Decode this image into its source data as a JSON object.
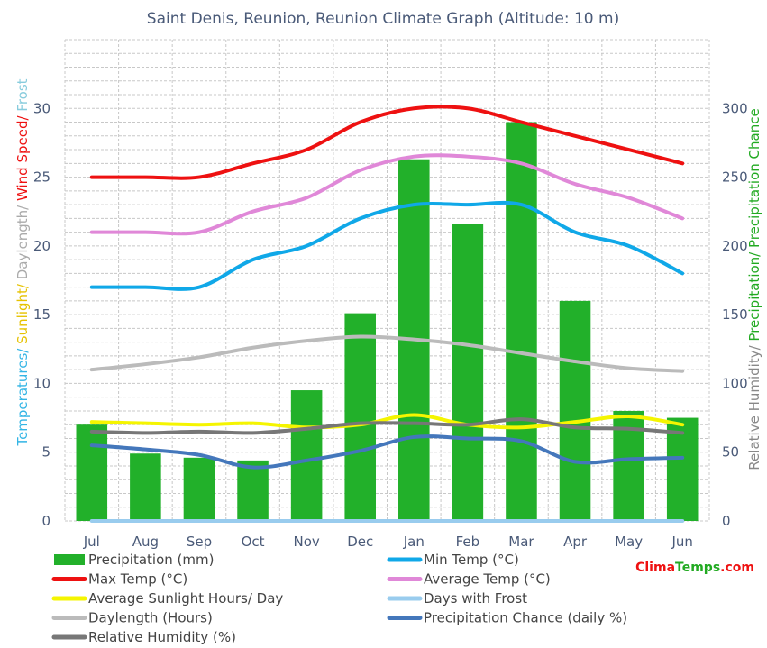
{
  "chart_data": {
    "type": "bar+line",
    "title": "Saint Denis, Reunion, Reunion Climate Graph (Altitude: 10 m)",
    "categories": [
      "Jul",
      "Aug",
      "Sep",
      "Oct",
      "Nov",
      "Dec",
      "Jan",
      "Feb",
      "Mar",
      "Apr",
      "May",
      "Jun"
    ],
    "left_axis": {
      "ylim": [
        0,
        35
      ],
      "ticks": [
        0,
        5,
        10,
        15,
        20,
        25,
        30
      ],
      "label_parts": [
        {
          "text": "Temperatures/",
          "color": "#33b5e5"
        },
        {
          "text": " Sunlight/",
          "color": "#e6c200"
        },
        {
          "text": " Daylength/",
          "color": "#aaaaaa"
        },
        {
          "text": " Wind Speed/",
          "color": "#ee1111"
        },
        {
          "text": " Frost",
          "color": "#88ccdd"
        }
      ]
    },
    "right_axis": {
      "ylim": [
        0,
        350
      ],
      "ticks": [
        0,
        50,
        100,
        150,
        200,
        250,
        300
      ],
      "label_parts": [
        {
          "text": "Relative Humidity/",
          "color": "#888888"
        },
        {
          "text": " Precipitation/",
          "color": "#22aa22"
        },
        {
          "text": " Precipitation Chance",
          "color": "#22aa22"
        }
      ]
    },
    "bars": {
      "name": "Precipitation (mm)",
      "color": "#22b02a",
      "axis": "right",
      "values": [
        70,
        49,
        46,
        44,
        95,
        151,
        263,
        216,
        290,
        160,
        80,
        75
      ]
    },
    "series": [
      {
        "name": "Max Temp (°C)",
        "color": "#ee1111",
        "axis": "left",
        "values": [
          25,
          25,
          25,
          26,
          27,
          29,
          30,
          30,
          29,
          28,
          27,
          26
        ]
      },
      {
        "name": "Average Temp (°C)",
        "color": "#e088d8",
        "axis": "left",
        "values": [
          21,
          21,
          21,
          22.5,
          23.5,
          25.5,
          26.5,
          26.5,
          26,
          24.5,
          23.5,
          22
        ]
      },
      {
        "name": "Min Temp (°C)",
        "color": "#10a8e8",
        "axis": "left",
        "values": [
          17,
          17,
          17,
          19,
          20,
          22,
          23,
          23,
          23,
          21,
          20,
          18
        ]
      },
      {
        "name": "Daylength (Hours)",
        "color": "#bbbbbb",
        "axis": "left",
        "values": [
          11,
          11.4,
          11.9,
          12.6,
          13.1,
          13.4,
          13.2,
          12.8,
          12.2,
          11.6,
          11.1,
          10.9
        ]
      },
      {
        "name": "Average Sunlight Hours/ Day",
        "color": "#f5f500",
        "axis": "left",
        "values": [
          7.2,
          7.1,
          7.0,
          7.1,
          6.8,
          7.0,
          7.7,
          7.0,
          6.8,
          7.2,
          7.6,
          7.0
        ]
      },
      {
        "name": "Relative Humidity (%)",
        "color": "#777777",
        "axis": "left",
        "values": [
          6.5,
          6.4,
          6.5,
          6.4,
          6.7,
          7.1,
          7.1,
          7.0,
          7.4,
          6.8,
          6.7,
          6.4
        ]
      },
      {
        "name": "Precipitation Chance (daily %)",
        "color": "#4477bb",
        "axis": "left",
        "values": [
          5.5,
          5.2,
          4.8,
          3.9,
          4.4,
          5.1,
          6.1,
          6.0,
          5.8,
          4.3,
          4.5,
          4.6
        ]
      },
      {
        "name": "Days with Frost",
        "color": "#99ccee",
        "axis": "left",
        "values": [
          0,
          0,
          0,
          0,
          0,
          0,
          0,
          0,
          0,
          0,
          0,
          0
        ]
      }
    ],
    "legend": {
      "placement": "bottom",
      "items": [
        {
          "label": "Precipitation (mm)",
          "color": "#22b02a",
          "kind": "bar"
        },
        {
          "label": "Min Temp (°C)",
          "color": "#10a8e8",
          "kind": "line"
        },
        {
          "label": "Max Temp (°C)",
          "color": "#ee1111",
          "kind": "line"
        },
        {
          "label": "Average Temp (°C)",
          "color": "#e088d8",
          "kind": "line"
        },
        {
          "label": "Average Sunlight Hours/ Day",
          "color": "#f5f500",
          "kind": "line"
        },
        {
          "label": "Days with Frost",
          "color": "#99ccee",
          "kind": "line"
        },
        {
          "label": "Daylength (Hours)",
          "color": "#bbbbbb",
          "kind": "line"
        },
        {
          "label": "Precipitation Chance (daily %)",
          "color": "#4477bb",
          "kind": "line"
        },
        {
          "label": "Relative Humidity (%)",
          "color": "#777777",
          "kind": "line"
        }
      ]
    }
  },
  "brand": {
    "part1": "Clima",
    "part2": "Temps",
    "part3": ".com",
    "color1": "#ee1111",
    "color2": "#22aa22"
  }
}
